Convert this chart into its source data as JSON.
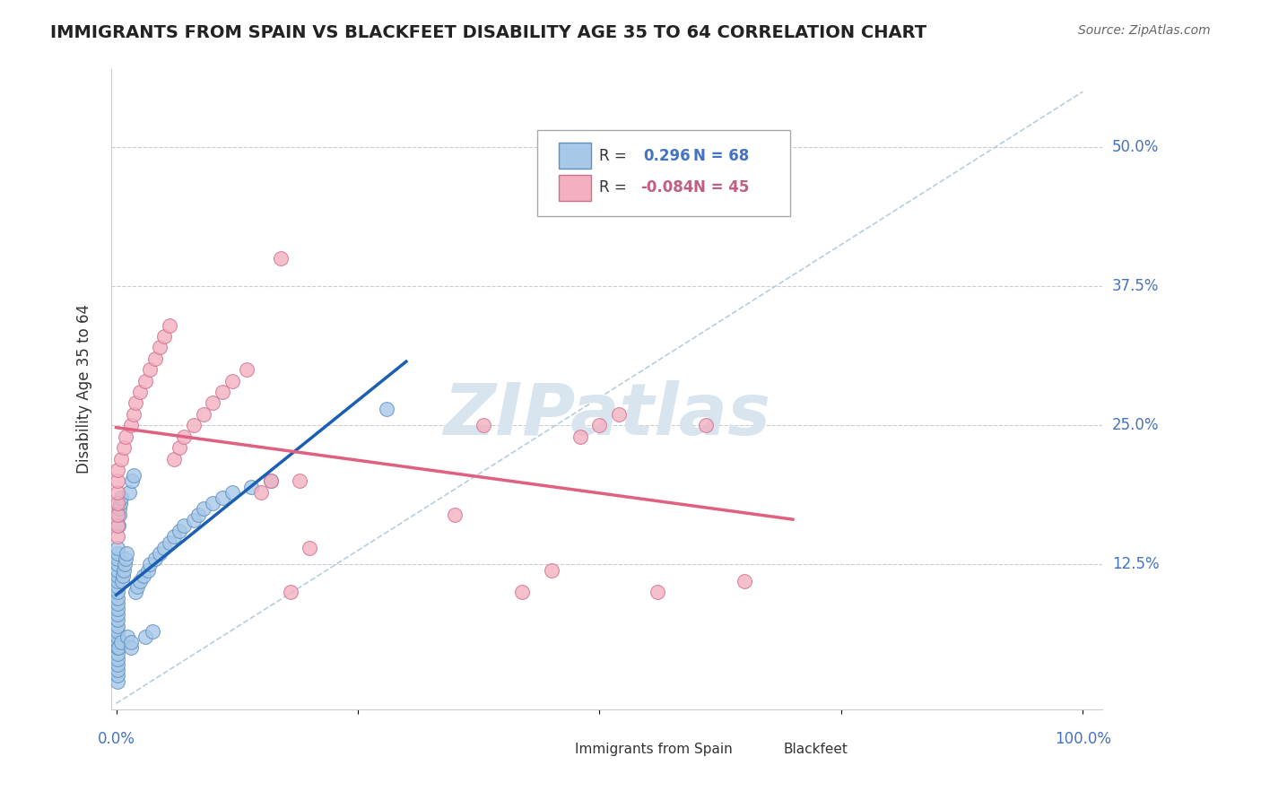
{
  "title": "IMMIGRANTS FROM SPAIN VS BLACKFEET DISABILITY AGE 35 TO 64 CORRELATION CHART",
  "source": "Source: ZipAtlas.com",
  "ylabel": "Disability Age 35 to 64",
  "legend_blue_r": "0.296",
  "legend_blue_n": "68",
  "legend_pink_r": "-0.084",
  "legend_pink_n": "45",
  "blue_color": "#a8c8e8",
  "blue_edge_color": "#6090c0",
  "pink_color": "#f4b0c0",
  "pink_edge_color": "#d07090",
  "blue_line_color": "#1a5fb4",
  "pink_line_color": "#e06080",
  "dashed_line_color": "#b0c8d8",
  "watermark_color": "#d8e4ee",
  "blue_scatter_x": [
    0.001,
    0.001,
    0.001,
    0.001,
    0.001,
    0.001,
    0.001,
    0.001,
    0.001,
    0.001,
    0.001,
    0.001,
    0.001,
    0.001,
    0.001,
    0.001,
    0.001,
    0.001,
    0.001,
    0.001,
    0.001,
    0.001,
    0.001,
    0.001,
    0.001,
    0.002,
    0.002,
    0.003,
    0.003,
    0.004,
    0.005,
    0.005,
    0.006,
    0.007,
    0.008,
    0.009,
    0.01,
    0.011,
    0.012,
    0.013,
    0.015,
    0.015,
    0.016,
    0.018,
    0.02,
    0.022,
    0.025,
    0.028,
    0.03,
    0.033,
    0.035,
    0.038,
    0.04,
    0.045,
    0.05,
    0.055,
    0.06,
    0.065,
    0.07,
    0.08,
    0.085,
    0.09,
    0.1,
    0.11,
    0.12,
    0.14,
    0.16,
    0.28
  ],
  "blue_scatter_y": [
    0.02,
    0.025,
    0.03,
    0.035,
    0.04,
    0.045,
    0.05,
    0.055,
    0.06,
    0.065,
    0.07,
    0.075,
    0.08,
    0.085,
    0.09,
    0.095,
    0.1,
    0.105,
    0.11,
    0.115,
    0.12,
    0.125,
    0.13,
    0.135,
    0.14,
    0.05,
    0.16,
    0.17,
    0.175,
    0.18,
    0.185,
    0.055,
    0.11,
    0.115,
    0.12,
    0.125,
    0.13,
    0.135,
    0.06,
    0.19,
    0.05,
    0.055,
    0.2,
    0.205,
    0.1,
    0.105,
    0.11,
    0.115,
    0.06,
    0.12,
    0.125,
    0.065,
    0.13,
    0.135,
    0.14,
    0.145,
    0.15,
    0.155,
    0.16,
    0.165,
    0.17,
    0.175,
    0.18,
    0.185,
    0.19,
    0.195,
    0.2,
    0.265
  ],
  "pink_scatter_x": [
    0.001,
    0.001,
    0.001,
    0.001,
    0.001,
    0.001,
    0.001,
    0.005,
    0.008,
    0.01,
    0.015,
    0.018,
    0.02,
    0.025,
    0.03,
    0.035,
    0.04,
    0.045,
    0.05,
    0.055,
    0.06,
    0.065,
    0.07,
    0.08,
    0.09,
    0.1,
    0.11,
    0.12,
    0.135,
    0.15,
    0.16,
    0.17,
    0.18,
    0.19,
    0.2,
    0.35,
    0.38,
    0.42,
    0.45,
    0.48,
    0.5,
    0.52,
    0.56,
    0.61,
    0.65
  ],
  "pink_scatter_y": [
    0.15,
    0.16,
    0.17,
    0.18,
    0.19,
    0.2,
    0.21,
    0.22,
    0.23,
    0.24,
    0.25,
    0.26,
    0.27,
    0.28,
    0.29,
    0.3,
    0.31,
    0.32,
    0.33,
    0.34,
    0.22,
    0.23,
    0.24,
    0.25,
    0.26,
    0.27,
    0.28,
    0.29,
    0.3,
    0.19,
    0.2,
    0.4,
    0.1,
    0.2,
    0.14,
    0.17,
    0.25,
    0.1,
    0.12,
    0.24,
    0.25,
    0.26,
    0.1,
    0.25,
    0.11
  ],
  "ytick_values": [
    0.125,
    0.25,
    0.375,
    0.5
  ],
  "ytick_labels": [
    "12.5%",
    "25.0%",
    "37.5%",
    "50.0%"
  ]
}
